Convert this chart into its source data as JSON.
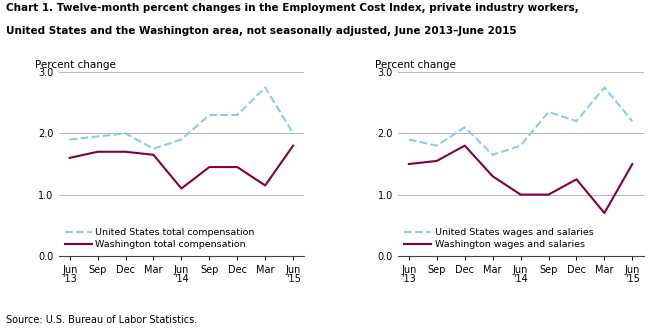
{
  "title_line1": "Chart 1. Twelve-month percent changes in the Employment Cost Index, private industry workers,",
  "title_line2": "United States and the Washington area, not seasonally adjusted, June 2013–June 2015",
  "source": "Source: U.S. Bureau of Labor Statistics.",
  "ylabel": "Percent change",
  "tick_labels": [
    "Jun\n'13",
    "Sep",
    "Dec",
    "Mar",
    "Jun\n'14",
    "Sep",
    "Dec",
    "Mar",
    "Jun\n'15"
  ],
  "ylim": [
    0.0,
    3.0
  ],
  "yticks": [
    0.0,
    1.0,
    2.0,
    3.0
  ],
  "left_us": [
    1.9,
    1.95,
    2.0,
    1.75,
    1.9,
    2.3,
    2.3,
    2.75,
    2.0
  ],
  "left_wa": [
    1.6,
    1.7,
    1.7,
    1.65,
    1.1,
    1.45,
    1.45,
    1.15,
    1.8
  ],
  "left_legend1": "United States total compensation",
  "left_legend2": "Washington total compensation",
  "right_us": [
    1.9,
    1.8,
    2.1,
    1.65,
    1.8,
    2.35,
    2.2,
    2.75,
    2.2
  ],
  "right_wa": [
    1.5,
    1.55,
    1.8,
    1.3,
    1.0,
    1.0,
    1.25,
    0.7,
    1.5
  ],
  "right_legend1": "United States wages and salaries",
  "right_legend2": "Washington wages and salaries",
  "us_color": "#87CEEB",
  "wa_color": "#800040",
  "us_linestyle": "--",
  "wa_linestyle": "-",
  "linewidth": 1.5,
  "grid_color": "#aaaaaa",
  "bg_color": "#ffffff"
}
